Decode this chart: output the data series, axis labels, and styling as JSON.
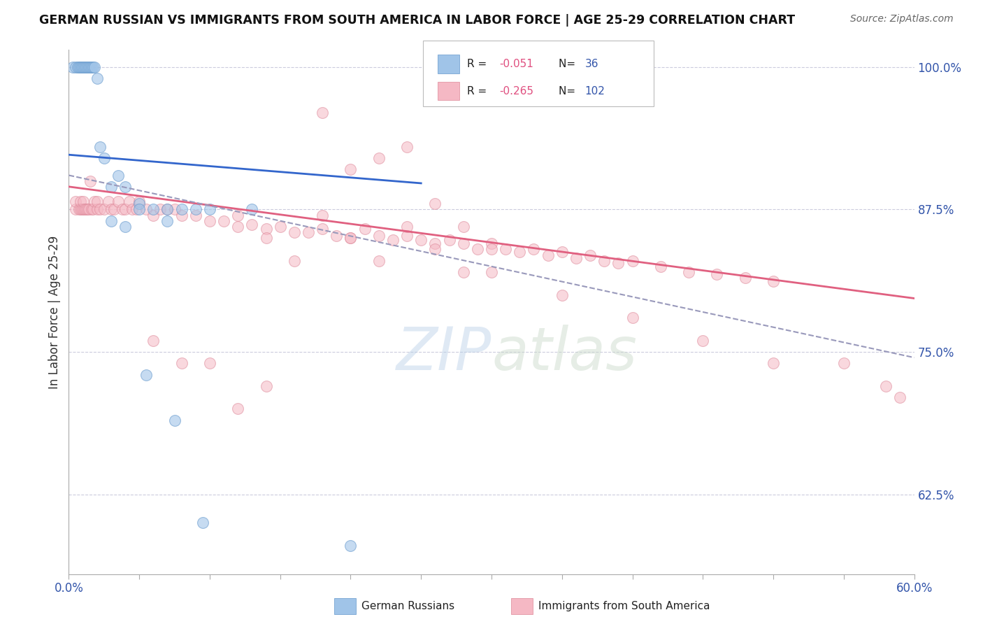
{
  "title": "GERMAN RUSSIAN VS IMMIGRANTS FROM SOUTH AMERICA IN LABOR FORCE | AGE 25-29 CORRELATION CHART",
  "source": "Source: ZipAtlas.com",
  "ylabel": "In Labor Force | Age 25-29",
  "xlim": [
    0.0,
    0.6
  ],
  "ylim": [
    0.555,
    1.015
  ],
  "yticks_right": [
    1.0,
    0.875,
    0.75,
    0.625
  ],
  "ytick_right_labels": [
    "100.0%",
    "87.5%",
    "75.0%",
    "62.5%"
  ],
  "blue_color": "#a0c4e8",
  "pink_color": "#f5b8c4",
  "blue_line_color": "#3366cc",
  "pink_line_color": "#e06080",
  "dashed_line_color": "#9999bb",
  "blue_edge_color": "#6699cc",
  "pink_edge_color": "#dd8899",
  "blue_line_x": [
    0.0,
    0.25
  ],
  "blue_line_y": [
    0.923,
    0.898
  ],
  "pink_line_x": [
    0.0,
    0.6
  ],
  "pink_line_y": [
    0.895,
    0.797
  ],
  "dash_line_x": [
    0.0,
    0.6
  ],
  "dash_line_y": [
    0.905,
    0.745
  ],
  "x_blue": [
    0.003,
    0.005,
    0.006,
    0.007,
    0.008,
    0.009,
    0.01,
    0.011,
    0.012,
    0.013,
    0.014,
    0.015,
    0.016,
    0.017,
    0.018,
    0.02,
    0.022,
    0.025,
    0.03,
    0.035,
    0.04,
    0.05,
    0.06,
    0.07,
    0.08,
    0.09,
    0.03,
    0.04,
    0.05,
    0.07,
    0.1,
    0.13,
    0.055,
    0.075,
    0.095,
    0.2
  ],
  "y_blue": [
    1.0,
    1.0,
    1.0,
    1.0,
    1.0,
    1.0,
    1.0,
    1.0,
    1.0,
    1.0,
    1.0,
    1.0,
    1.0,
    1.0,
    1.0,
    0.99,
    0.93,
    0.92,
    0.895,
    0.905,
    0.895,
    0.88,
    0.875,
    0.875,
    0.875,
    0.875,
    0.865,
    0.86,
    0.875,
    0.865,
    0.875,
    0.875,
    0.73,
    0.69,
    0.6,
    0.58
  ],
  "x_pink": [
    0.005,
    0.005,
    0.007,
    0.008,
    0.008,
    0.009,
    0.01,
    0.01,
    0.011,
    0.012,
    0.013,
    0.014,
    0.015,
    0.016,
    0.017,
    0.018,
    0.02,
    0.02,
    0.022,
    0.025,
    0.028,
    0.03,
    0.032,
    0.035,
    0.038,
    0.04,
    0.043,
    0.045,
    0.048,
    0.05,
    0.055,
    0.06,
    0.065,
    0.07,
    0.075,
    0.08,
    0.09,
    0.1,
    0.11,
    0.12,
    0.13,
    0.14,
    0.15,
    0.16,
    0.17,
    0.18,
    0.19,
    0.2,
    0.21,
    0.22,
    0.23,
    0.24,
    0.25,
    0.26,
    0.27,
    0.28,
    0.29,
    0.3,
    0.31,
    0.32,
    0.33,
    0.34,
    0.35,
    0.36,
    0.37,
    0.38,
    0.39,
    0.4,
    0.42,
    0.44,
    0.46,
    0.48,
    0.5,
    0.18,
    0.2,
    0.22,
    0.24,
    0.26,
    0.28,
    0.3,
    0.12,
    0.14,
    0.16,
    0.18,
    0.2,
    0.22,
    0.24,
    0.26,
    0.28,
    0.06,
    0.08,
    0.1,
    0.12,
    0.14,
    0.3,
    0.35,
    0.4,
    0.45,
    0.5,
    0.55,
    0.58,
    0.59
  ],
  "y_pink": [
    0.875,
    0.882,
    0.875,
    0.875,
    0.882,
    0.875,
    0.875,
    0.882,
    0.875,
    0.875,
    0.875,
    0.875,
    0.9,
    0.875,
    0.875,
    0.882,
    0.875,
    0.882,
    0.875,
    0.875,
    0.882,
    0.875,
    0.875,
    0.882,
    0.875,
    0.875,
    0.882,
    0.875,
    0.875,
    0.882,
    0.875,
    0.87,
    0.875,
    0.875,
    0.875,
    0.87,
    0.87,
    0.865,
    0.865,
    0.86,
    0.862,
    0.858,
    0.86,
    0.855,
    0.855,
    0.858,
    0.852,
    0.85,
    0.858,
    0.852,
    0.848,
    0.852,
    0.848,
    0.845,
    0.848,
    0.845,
    0.84,
    0.845,
    0.84,
    0.838,
    0.84,
    0.835,
    0.838,
    0.832,
    0.835,
    0.83,
    0.828,
    0.83,
    0.825,
    0.82,
    0.818,
    0.815,
    0.812,
    0.96,
    0.91,
    0.92,
    0.93,
    0.88,
    0.86,
    0.84,
    0.87,
    0.85,
    0.83,
    0.87,
    0.85,
    0.83,
    0.86,
    0.84,
    0.82,
    0.76,
    0.74,
    0.74,
    0.7,
    0.72,
    0.82,
    0.8,
    0.78,
    0.76,
    0.74,
    0.74,
    0.72,
    0.71
  ]
}
